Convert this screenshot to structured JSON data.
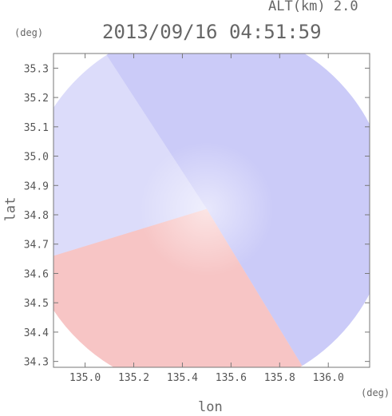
{
  "chart_data": {
    "type": "heatmap",
    "title": "2013/09/16 04:51:59",
    "subtitle": "ALT(km) 2.0",
    "xlabel": "lon",
    "ylabel": "lat",
    "x_unit": "(deg)",
    "y_unit": "(deg)",
    "xlim": [
      134.87,
      136.17
    ],
    "ylim": [
      34.28,
      35.35
    ],
    "xticks": [
      "135.0",
      "135.2",
      "135.4",
      "135.6",
      "135.8",
      "136.0"
    ],
    "xtick_values": [
      135.0,
      135.2,
      135.4,
      135.6,
      135.8,
      136.0
    ],
    "yticks": [
      "34.3",
      "34.4",
      "34.5",
      "34.6",
      "34.7",
      "34.8",
      "34.9",
      "35.0",
      "35.1",
      "35.2",
      "35.3"
    ],
    "ytick_values": [
      34.3,
      34.4,
      34.5,
      34.6,
      34.7,
      34.8,
      34.9,
      35.0,
      35.1,
      35.2,
      35.3
    ],
    "grid": false,
    "colors": {
      "positive": "#f08c8c",
      "negative": "#8c8cf0",
      "near_zero": "#f4f4fb",
      "axis": "#777777"
    },
    "radar_center": [
      135.5,
      34.82
    ],
    "sectors": [
      {
        "lon_start": 135.1,
        "lat_start": 35.33,
        "lon_end": 135.83,
        "lat_end": 34.37,
        "sign": "negative",
        "intensity": 0.45
      },
      {
        "lon_start": 135.83,
        "lat_start": 34.37,
        "lon_end": 134.87,
        "lat_end": 34.66,
        "sign": "positive",
        "intensity": 0.5
      },
      {
        "lon_start": 134.87,
        "lat_start": 34.66,
        "lon_end": 135.1,
        "lat_end": 35.33,
        "sign": "negative",
        "intensity": 0.3
      }
    ]
  }
}
